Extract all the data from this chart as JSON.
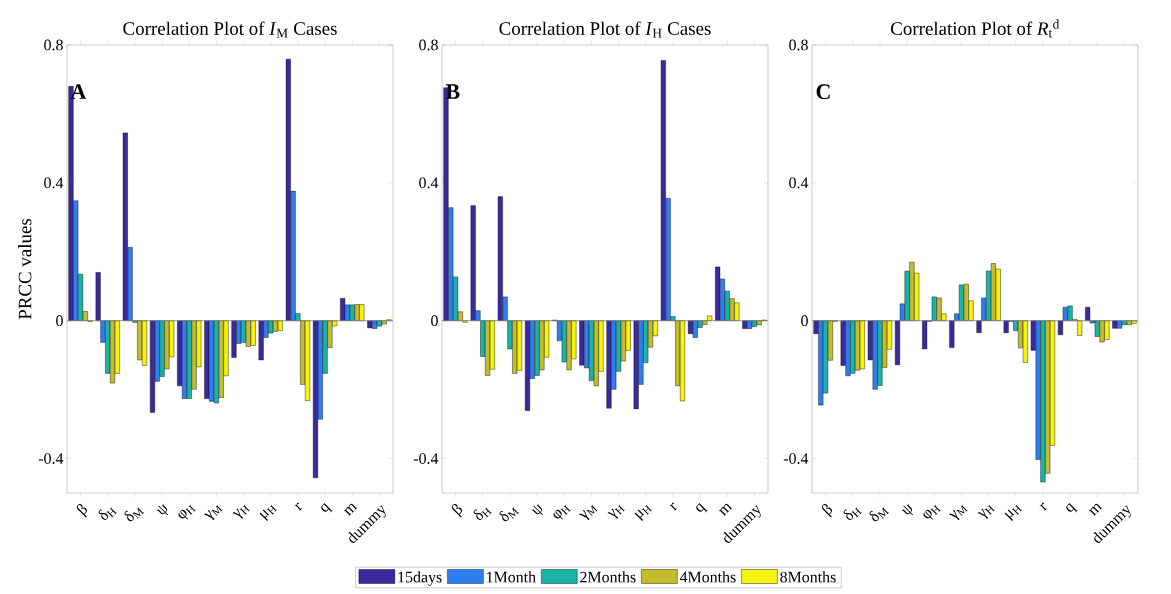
{
  "chart_data": [
    {
      "type": "bar",
      "title": "Correlation Plot of *I*$_{M}$ Cases",
      "ylabel": "PRCC values",
      "annotations": [
        "A"
      ],
      "categories": [
        "β",
        "δ$_{H}$",
        "δ$_{M}$",
        "ψ",
        "φ$_{H}$",
        "γ$_{M}$",
        "γ$_{H}$",
        "μ$_{H}$",
        "r",
        "q",
        "m",
        "dummy"
      ],
      "series": [
        {
          "color": "#3a2a9e",
          "values": [
            0.68,
            0.14,
            0.545,
            -0.266,
            -0.189,
            -0.226,
            -0.107,
            -0.114,
            0.759,
            -0.456,
            0.065,
            -0.021
          ]
        },
        {
          "color": "#2f7ef0",
          "values": [
            0.348,
            -0.063,
            0.213,
            -0.176,
            -0.226,
            -0.234,
            -0.066,
            -0.049,
            0.376,
            -0.286,
            0.046,
            -0.023
          ]
        },
        {
          "color": "#1bb3a8",
          "values": [
            0.135,
            -0.153,
            -0.005,
            -0.162,
            -0.226,
            -0.239,
            -0.063,
            -0.036,
            0.021,
            -0.153,
            0.046,
            -0.016
          ]
        },
        {
          "color": "#c3bc2c",
          "values": [
            0.027,
            -0.181,
            -0.114,
            -0.14,
            -0.199,
            -0.223,
            -0.075,
            -0.031,
            -0.185,
            -0.078,
            0.047,
            -0.01
          ]
        },
        {
          "color": "#f7f10f",
          "values": [
            -0.003,
            -0.153,
            -0.13,
            -0.105,
            -0.134,
            -0.16,
            -0.072,
            -0.029,
            -0.232,
            -0.015,
            0.047,
            0.003
          ]
        }
      ],
      "ylim": [
        -0.5,
        0.8
      ],
      "yticks": [
        -0.4,
        0,
        0.4,
        0.8
      ],
      "ref_lines": [
        {
          "axis": "y",
          "value": 0
        }
      ]
    },
    {
      "type": "bar",
      "title": "Correlation Plot of *I*$_{H}$ Cases",
      "annotations": [
        "B"
      ],
      "categories": [
        "β",
        "δ$_{H}$",
        "δ$_{M}$",
        "ψ",
        "φ$_{H}$",
        "γ$_{M}$",
        "γ$_{H}$",
        "μ$_{H}$",
        "r",
        "q",
        "m",
        "dummy"
      ],
      "series": [
        {
          "name": "15days",
          "color": "#3a2a9e",
          "values": [
            0.676,
            0.334,
            0.36,
            -0.261,
            0.002,
            -0.129,
            -0.254,
            -0.256,
            0.755,
            -0.038,
            0.156,
            -0.023
          ]
        },
        {
          "name": "1Month",
          "color": "#2f7ef0",
          "values": [
            0.328,
            0.029,
            0.069,
            -0.168,
            -0.058,
            -0.137,
            -0.199,
            -0.185,
            0.355,
            -0.049,
            0.121,
            -0.023
          ]
        },
        {
          "name": "2Months",
          "color": "#1bb3a8",
          "values": [
            0.127,
            -0.104,
            -0.082,
            -0.159,
            -0.12,
            -0.174,
            -0.147,
            -0.122,
            0.012,
            -0.02,
            0.086,
            -0.017
          ]
        },
        {
          "name": "4Months",
          "color": "#c3bc2c",
          "values": [
            0.026,
            -0.159,
            -0.153,
            -0.143,
            -0.143,
            -0.189,
            -0.117,
            -0.077,
            -0.189,
            -0.011,
            0.064,
            -0.012
          ]
        },
        {
          "name": "8Months",
          "color": "#f7f10f",
          "values": [
            -0.005,
            -0.141,
            -0.144,
            -0.106,
            -0.111,
            -0.147,
            -0.086,
            -0.044,
            -0.233,
            0.014,
            0.052,
            0.002
          ]
        }
      ],
      "ylim": [
        -0.5,
        0.8
      ],
      "yticks": [
        -0.4,
        0,
        0.4,
        0.8
      ],
      "ref_lines": [
        {
          "axis": "y",
          "value": 0
        }
      ],
      "legend": "bottom"
    },
    {
      "type": "bar",
      "title": "Correlation Plot of *R*$_{t}$$^{d}$",
      "annotations": [
        "C"
      ],
      "categories": [
        "β",
        "δ$_{H}$",
        "δ$_{M}$",
        "ψ",
        "φ$_{H}$",
        "γ$_{M}$",
        "γ$_{H}$",
        "μ$_{H}$",
        "r",
        "q",
        "m",
        "dummy"
      ],
      "series": [
        {
          "color": "#3a2a9e",
          "values": [
            -0.038,
            -0.13,
            -0.114,
            -0.128,
            -0.082,
            -0.078,
            -0.035,
            -0.035,
            -0.086,
            -0.041,
            0.039,
            -0.022
          ]
        },
        {
          "color": "#2f7ef0",
          "values": [
            -0.245,
            -0.16,
            -0.199,
            0.049,
            -0.002,
            0.02,
            0.066,
            -0.002,
            -0.403,
            0.039,
            -0.007,
            -0.022
          ]
        },
        {
          "color": "#1bb3a8",
          "values": [
            -0.21,
            -0.153,
            -0.188,
            0.144,
            0.069,
            0.104,
            0.144,
            -0.029,
            -0.468,
            0.043,
            -0.046,
            -0.012
          ]
        },
        {
          "color": "#c3bc2c",
          "values": [
            -0.115,
            -0.144,
            -0.136,
            0.17,
            0.066,
            0.106,
            0.166,
            -0.079,
            -0.443,
            0.004,
            -0.062,
            -0.012
          ]
        },
        {
          "color": "#f7f10f",
          "values": [
            -0.002,
            -0.14,
            -0.083,
            0.138,
            0.02,
            0.058,
            0.15,
            -0.121,
            -0.362,
            -0.043,
            -0.055,
            -0.008
          ]
        }
      ],
      "ylim": [
        -0.5,
        0.8
      ],
      "yticks": [
        -0.4,
        0,
        0.4,
        0.8
      ],
      "ref_lines": [
        {
          "axis": "y",
          "value": 0
        }
      ]
    }
  ]
}
